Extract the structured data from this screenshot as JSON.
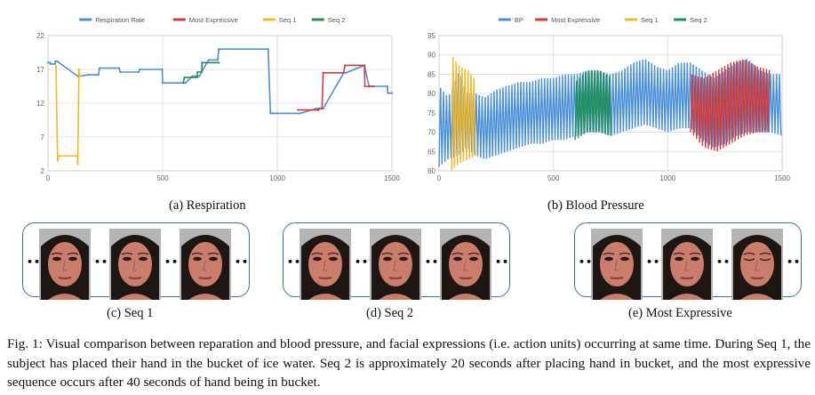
{
  "chart_data": [
    {
      "type": "line",
      "title": "",
      "legend": [
        "Respiration Rate",
        "Most Expressive",
        "Seq 1",
        "Seq 2"
      ],
      "legend_position": "top-center",
      "colors": {
        "Respiration Rate": "#4a90d9",
        "Most Expressive": "#d43a3a",
        "Seq 1": "#f0b82a",
        "Seq 2": "#229154"
      },
      "xlim": [
        0,
        1500
      ],
      "ylim": [
        2,
        22
      ],
      "xticks": [
        "0",
        "500",
        "1000",
        "1500"
      ],
      "yticks": [
        "2",
        "7",
        "12",
        "17",
        "22"
      ],
      "grid": true,
      "series": [
        {
          "name": "Respiration Rate",
          "x": [
            0,
            10,
            12,
            30,
            32,
            40,
            130,
            135,
            180,
            220,
            225,
            310,
            315,
            395,
            400,
            498,
            500,
            600,
            630,
            660,
            700,
            740,
            745,
            960,
            970,
            980,
            1000,
            1100,
            1170,
            1200,
            1290,
            1300,
            1380,
            1400,
            1480,
            1482,
            1500
          ],
          "y": [
            18,
            18,
            17.8,
            17.8,
            18.2,
            18.2,
            16,
            16,
            16.2,
            16.2,
            17.2,
            17.2,
            16.6,
            16.6,
            17,
            17,
            15,
            15,
            16,
            16,
            18.4,
            18.4,
            20,
            20,
            10.5,
            10.5,
            10.5,
            10.5,
            11.2,
            11.2,
            16.5,
            16.5,
            17.6,
            14.5,
            14.5,
            13.5,
            13.5
          ]
        },
        {
          "name": "Seq 1",
          "x": [
            35,
            42,
            45,
            128,
            130,
            135,
            138,
            145
          ],
          "y": [
            17.5,
            3.5,
            4.2,
            4.2,
            3,
            17,
            16,
            16
          ]
        },
        {
          "name": "Seq 2",
          "x": [
            590,
            595,
            650,
            652,
            670,
            672,
            745
          ],
          "y": [
            15,
            15.8,
            15.8,
            16.6,
            16.6,
            18,
            18
          ]
        },
        {
          "name": "Most Expressive",
          "x": [
            1090,
            1180,
            1182,
            1195,
            1200,
            1290,
            1295,
            1380,
            1382,
            1400,
            1420
          ],
          "y": [
            11,
            11,
            11.2,
            11.2,
            16.5,
            16.5,
            17.6,
            17.6,
            14.5,
            14.5,
            14.5
          ]
        }
      ]
    },
    {
      "type": "line",
      "title": "",
      "legend": [
        "BP",
        "Most Expressive",
        "Seq 1",
        "Seq 2"
      ],
      "legend_position": "top-center",
      "colors": {
        "BP": "#4a90d9",
        "Most Expressive": "#d43a3a",
        "Seq 1": "#f0b82a",
        "Seq 2": "#229154"
      },
      "xlim": [
        0,
        1500
      ],
      "ylim": [
        60,
        95
      ],
      "xticks": [
        "0",
        "500",
        "1000",
        "1500"
      ],
      "yticks": [
        "60",
        "65",
        "70",
        "75",
        "80",
        "85",
        "90",
        "95"
      ],
      "grid": true,
      "series": [
        {
          "name": "BP",
          "x": [
            0,
            40,
            90,
            120,
            160,
            200,
            250,
            300,
            350,
            400,
            450,
            500,
            550,
            600,
            650,
            700,
            750,
            800,
            850,
            900,
            950,
            1000,
            1050,
            1100,
            1150,
            1200,
            1250,
            1300,
            1350,
            1400,
            1450,
            1500
          ],
          "y_high": [
            82,
            79,
            86,
            80,
            80,
            79,
            81,
            82,
            83,
            83,
            84,
            84,
            85,
            85,
            86,
            86,
            85,
            86,
            88,
            89,
            87,
            86,
            88,
            88,
            86,
            84,
            86,
            88,
            89,
            86,
            85,
            85
          ],
          "y_low": [
            61,
            63,
            64,
            66,
            64,
            63,
            64,
            65,
            66,
            67,
            67,
            68,
            68,
            69,
            70,
            70,
            69,
            70,
            71,
            72,
            71,
            70,
            71,
            71,
            68,
            66,
            67,
            69,
            70,
            70,
            70,
            69
          ]
        },
        {
          "name": "Seq 1",
          "x_range": [
            55,
            165
          ],
          "y_high": [
            90,
            87,
            86,
            83
          ],
          "y_low": [
            60,
            62,
            63,
            64
          ]
        },
        {
          "name": "Seq 2",
          "x_range": [
            595,
            755
          ],
          "y_high": [
            83,
            86,
            86,
            84
          ],
          "y_low": [
            68,
            70,
            70,
            69
          ]
        },
        {
          "name": "Most Expressive",
          "x_range": [
            1100,
            1450
          ],
          "y_high": [
            85,
            84,
            86,
            88,
            89,
            87,
            86
          ],
          "y_low": [
            70,
            66,
            65,
            67,
            69,
            70,
            70
          ]
        }
      ]
    }
  ],
  "subcaptions": {
    "a": "(a) Respiration",
    "b": "(b) Blood Pressure",
    "c": "(c) Seq 1",
    "d": "(d) Seq 2",
    "e": "(e) Most Expressive"
  },
  "ellipsis": "••",
  "figure_caption": "Fig. 1: Visual comparison between reparation and blood pressure, and facial expressions (i.e. action units) occurring at same time. During Seq 1, the subject has placed their hand in the bucket of ice water. Seq 2 is approximately 20 seconds after placing hand in bucket, and the most expressive sequence occurs after 40 seconds of hand being in bucket."
}
